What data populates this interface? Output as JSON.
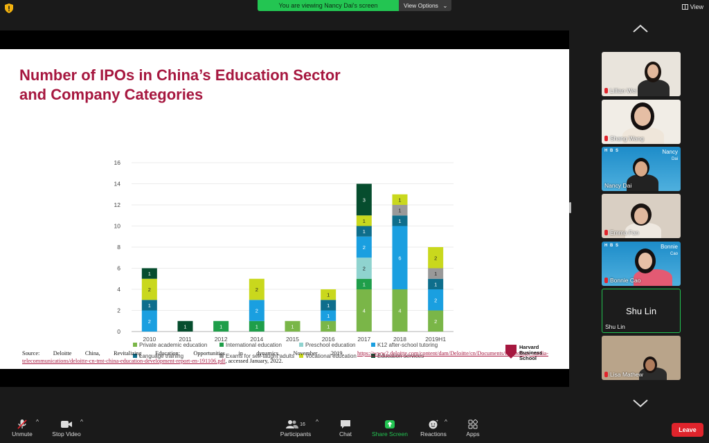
{
  "banner": {
    "text": "You are viewing Nancy Dai's screen",
    "view_options": "View Options",
    "view_button": "View"
  },
  "slide": {
    "title_line1": "Number of IPOs in China’s Education Sector",
    "title_line2": "and Company Categories",
    "source_label": "Source:",
    "source_words": [
      "Deloitte",
      "China,",
      "Revitalizing",
      "Education:",
      "Opportunities",
      "in",
      "dynamics,",
      "November",
      "2019,"
    ],
    "source_link1": "https://www2.deloitte.com/content/dam/Deloitte/cn/Documents/technology-media-",
    "source_link2": "telecommunications/deloitte-cn-tmt-china-education-development-report-en-191106.pdf",
    "source_tail": ", accessed January, 2022.",
    "logo_text": [
      "Harvard",
      "Business",
      "School"
    ]
  },
  "chart_data": {
    "type": "bar",
    "stacked": true,
    "categories": [
      "2010",
      "2011",
      "2012",
      "2014",
      "2015",
      "2016",
      "2017",
      "2018",
      "2019H1"
    ],
    "ylim": [
      0,
      16
    ],
    "yticks": [
      0,
      2,
      4,
      6,
      8,
      10,
      12,
      14,
      16
    ],
    "grid": true,
    "legend_position": "bottom",
    "series": [
      {
        "name": "Private academic education",
        "color": "#7ab648",
        "values": [
          0,
          0,
          0,
          0,
          1,
          1,
          4,
          4,
          2
        ]
      },
      {
        "name": "International education",
        "color": "#1f9e4a",
        "values": [
          0,
          0,
          1,
          1,
          0,
          0,
          1,
          0,
          0
        ]
      },
      {
        "name": "Preschool education",
        "color": "#8fd3cf",
        "values": [
          0,
          0,
          0,
          0,
          0,
          0,
          2,
          0,
          0
        ]
      },
      {
        "name": "K12 after-school tutoring",
        "color": "#1a9fe0",
        "values": [
          2,
          0,
          0,
          2,
          0,
          1,
          2,
          6,
          2
        ]
      },
      {
        "name": "Language training",
        "color": "#0e6e8c",
        "values": [
          1,
          0,
          0,
          0,
          0,
          1,
          1,
          1,
          1
        ]
      },
      {
        "name": "Exams for self-taught adults",
        "color": "#999999",
        "values": [
          0,
          0,
          0,
          0,
          0,
          0,
          0,
          1,
          1
        ]
      },
      {
        "name": "Vocational education",
        "color": "#c9d81d",
        "values": [
          2,
          0,
          0,
          2,
          0,
          1,
          1,
          1,
          2
        ]
      },
      {
        "name": "Education services",
        "color": "#064d2e",
        "values": [
          1,
          1,
          0,
          0,
          0,
          0,
          3,
          0,
          0
        ]
      }
    ]
  },
  "participants_panel": [
    {
      "name": "Lillian Wei"
    },
    {
      "name": "Shang Wang"
    },
    {
      "name": "Nancy Dai",
      "label_main": "Nancy",
      "label_sub": "Dai",
      "tag": "H B S"
    },
    {
      "name": "Emma Fan"
    },
    {
      "name": "Bonnie Cao",
      "label_main": "Bonnie",
      "label_sub": "Cao",
      "tag": "H B S"
    },
    {
      "name": "Shu Lin",
      "big": "Shu Lin"
    },
    {
      "name": "Lisa Mathew"
    }
  ],
  "toolbar": {
    "unmute": "Unmute",
    "stop_video": "Stop Video",
    "participants": "Participants",
    "participants_count": "16",
    "chat": "Chat",
    "share_screen": "Share Screen",
    "reactions": "Reactions",
    "apps": "Apps",
    "leave": "Leave"
  },
  "colors": {
    "accent_green": "#23c552",
    "title_red": "#a6173f",
    "leave_red": "#e0242c"
  }
}
